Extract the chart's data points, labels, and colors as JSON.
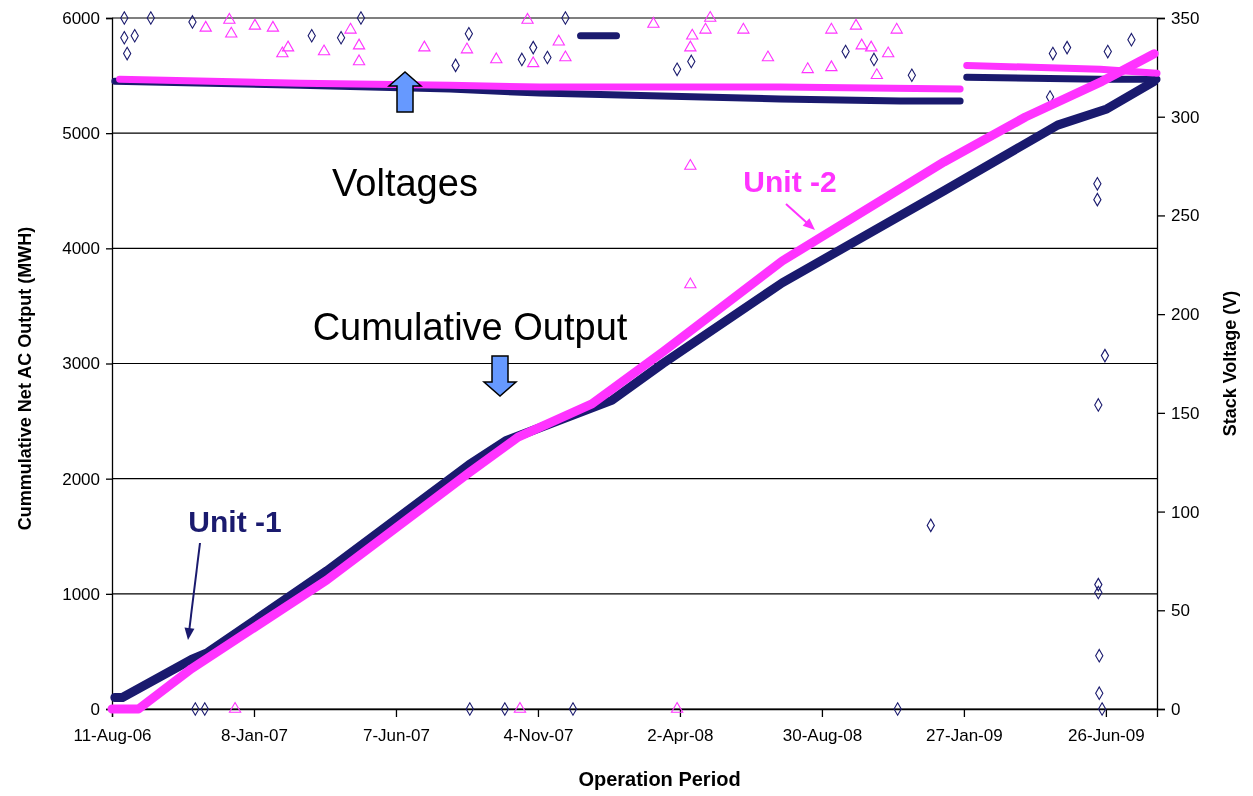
{
  "chart_data": {
    "type": "line",
    "xlabel": "Operation Period",
    "ylabel": "Cummulative Net AC Output (MWH)",
    "y2label": "Stack Voltage (V)",
    "annotations": [
      "Voltages",
      "Cumulative Output"
    ],
    "xlim": [
      "2006-08-11",
      "2009-08-19"
    ],
    "xticks": [
      {
        "value": "2006-08-11",
        "label": "11-Aug-06"
      },
      {
        "value": "2007-01-08",
        "label": "8-Jan-07"
      },
      {
        "value": "2007-06-07",
        "label": "7-Jun-07"
      },
      {
        "value": "2007-11-04",
        "label": "4-Nov-07"
      },
      {
        "value": "2008-04-02",
        "label": "2-Apr-08"
      },
      {
        "value": "2008-08-30",
        "label": "30-Aug-08"
      },
      {
        "value": "2009-01-27",
        "label": "27-Jan-09"
      },
      {
        "value": "2009-06-26",
        "label": "26-Jun-09"
      }
    ],
    "ylim": [
      0,
      6000
    ],
    "yticks": [
      0,
      1000,
      2000,
      3000,
      4000,
      5000,
      6000
    ],
    "y2lim": [
      0,
      350
    ],
    "y2ticks": [
      0,
      50,
      100,
      150,
      200,
      250,
      300,
      350
    ],
    "grid": "y",
    "series": [
      {
        "name": "Unit -1",
        "color": "#1a1a6e",
        "x": [
          "2006-08-14",
          "2006-08-22",
          "2006-11-03",
          "2006-11-20",
          "2007-03-26",
          "2007-08-23",
          "2007-10-01",
          "2008-01-21",
          "2008-03-15",
          "2008-07-19",
          "2009-01-06",
          "2009-05-06",
          "2009-06-27",
          "2009-08-16"
        ],
        "values": [
          100,
          100,
          430,
          490,
          1200,
          2120,
          2330,
          2680,
          3000,
          3700,
          4500,
          5070,
          5210,
          5450
        ]
      },
      {
        "name": "Unit -2",
        "color": "#ff33ff",
        "x": [
          "2006-08-11",
          "2006-09-08",
          "2006-11-03",
          "2007-03-26",
          "2007-08-23",
          "2007-10-14",
          "2007-12-31",
          "2008-03-15",
          "2008-07-19",
          "2009-01-06",
          "2009-04-02",
          "2009-06-22",
          "2009-08-16"
        ],
        "values": [
          0,
          0,
          350,
          1120,
          2050,
          2360,
          2650,
          3100,
          3890,
          4750,
          5140,
          5450,
          5690
        ]
      },
      {
        "axis": "y2",
        "color": "#1a1a6e",
        "x": [
          "2006-08-14",
          "2007-02-26",
          "2007-08-03",
          "2007-11-06",
          "2008-01-30",
          "2008-07-17",
          "2008-11-21",
          "2009-01-23",
          "2009-01-26",
          "2009-01-30",
          "2009-06-20",
          "2009-08-19"
        ],
        "values": [
          318,
          316,
          314,
          312,
          311,
          309,
          308,
          308,
          null,
          320,
          319,
          319
        ]
      },
      {
        "axis": "y2",
        "color": "#1a1a6e",
        "x": [
          "2007-12-19",
          "2008-01-26"
        ],
        "values": [
          341,
          341
        ]
      },
      {
        "axis": "y2",
        "color": "#ff33ff",
        "x": [
          "2006-08-19",
          "2007-02-26",
          "2007-08-03",
          "2007-11-06",
          "2008-01-30",
          "2008-07-17",
          "2009-01-23",
          "2009-01-26",
          "2009-01-30",
          "2009-06-20",
          "2009-08-19"
        ],
        "values": [
          319,
          317,
          316,
          315,
          315,
          315,
          314,
          null,
          326,
          324,
          322
        ]
      },
      {
        "type": "scatter",
        "axis": "y2",
        "marker": "diamond",
        "color": "#1a1a6e",
        "x": [
          "2006-08-24",
          "2006-09-21",
          "2006-08-24",
          "2006-08-27",
          "2006-09-04",
          "2006-11-04",
          "2007-03-10",
          "2007-04-10",
          "2007-05-01",
          "2007-08-23",
          "2007-08-09",
          "2007-10-30",
          "2007-10-18",
          "2007-11-14",
          "2007-12-03",
          "2008-09-24",
          "2008-10-24",
          "2008-12-03",
          "2009-05-01",
          "2009-05-16",
          "2009-06-28",
          "2009-07-23",
          "2009-04-28",
          "2009-06-17",
          "2009-06-17",
          "2009-06-25",
          "2008-04-14",
          "2008-03-30",
          "2009-06-18",
          "2008-12-23",
          "2009-06-18",
          "2009-06-18",
          "2009-06-19",
          "2009-06-19",
          "2009-06-22",
          "2008-11-18",
          "2006-11-07",
          "2006-11-17",
          "2007-08-24",
          "2007-09-30",
          "2007-12-11"
        ],
        "values": [
          350,
          350,
          340,
          332,
          341,
          348,
          341,
          340,
          350,
          342,
          326,
          335,
          329,
          330,
          350,
          333,
          329,
          321,
          332,
          335,
          333,
          339,
          310,
          266,
          258,
          179,
          328,
          324,
          154,
          93,
          63,
          59,
          27,
          8,
          0,
          0,
          0,
          0,
          0,
          0,
          0
        ]
      },
      {
        "type": "scatter",
        "axis": "y2",
        "marker": "triangle",
        "color": "#ff33ff",
        "x": [
          "2006-11-18",
          "2006-12-15",
          "2006-12-13",
          "2007-01-09",
          "2007-01-28",
          "2007-02-13",
          "2007-02-07",
          "2007-03-23",
          "2007-04-29",
          "2007-04-29",
          "2007-04-20",
          "2007-07-07",
          "2007-08-21",
          "2007-09-21",
          "2007-10-24",
          "2007-11-26",
          "2007-12-03",
          "2007-10-30",
          "2008-03-05",
          "2008-04-15",
          "2008-04-13",
          "2008-04-29",
          "2008-05-04",
          "2008-06-08",
          "2008-07-04",
          "2008-08-15",
          "2008-09-09",
          "2008-09-09",
          "2008-10-05",
          "2008-10-11",
          "2008-10-21",
          "2008-11-08",
          "2008-11-17",
          "2008-10-27",
          "2008-04-13",
          "2008-04-13",
          "2006-12-19",
          "2007-10-16",
          "2008-03-30"
        ],
        "values": [
          345,
          342,
          349,
          346,
          345,
          335,
          332,
          333,
          336,
          328,
          344,
          335,
          334,
          329,
          349,
          338,
          330,
          327,
          347,
          341,
          335,
          344,
          350,
          344,
          330,
          324,
          344,
          325,
          346,
          336,
          335,
          332,
          344,
          321,
          275,
          215,
          0,
          0,
          0
        ]
      }
    ]
  }
}
